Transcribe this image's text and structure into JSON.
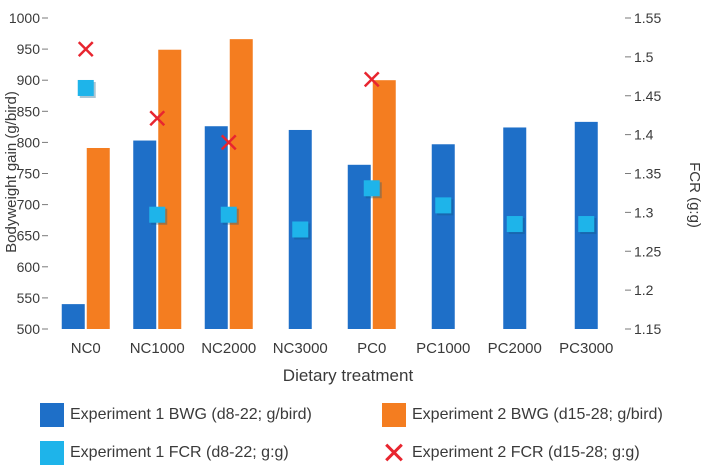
{
  "chart_data": {
    "type": "bar",
    "xlabel": "Dietary treatment",
    "ylabel": "Bodyweight gain (g/bird)",
    "y2label": "FCR (g:g)",
    "categories": [
      "NC0",
      "NC1000",
      "NC2000",
      "NC3000",
      "PC0",
      "PC1000",
      "PC2000",
      "PC3000"
    ],
    "ylim": [
      500,
      1000
    ],
    "yticks": [
      500,
      550,
      600,
      650,
      700,
      750,
      800,
      850,
      900,
      950,
      1000
    ],
    "y2lim": [
      1.15,
      1.55
    ],
    "y2ticks": [
      "1.15",
      "1.2",
      "1.25",
      "1.3",
      "1.35",
      "1.4",
      "1.45",
      "1.5",
      "1.55"
    ],
    "series": [
      {
        "name": "Experiment 1 BWG (d8-22; g/bird)",
        "type": "bar",
        "axis": "left",
        "color": "#1e6fc8",
        "values": [
          540,
          803,
          826,
          820,
          764,
          797,
          824,
          833
        ]
      },
      {
        "name": "Experiment 2 BWG (d15-28; g/bird)",
        "type": "bar",
        "axis": "left",
        "color": "#f47d20",
        "values": [
          791,
          949,
          966,
          null,
          900,
          null,
          null,
          null
        ]
      },
      {
        "name": "Experiment 1 FCR (d8-22; g:g)",
        "type": "scatter",
        "marker": "square",
        "axis": "right",
        "color": "#1eb4ea",
        "values": [
          1.46,
          1.297,
          1.297,
          1.278,
          1.331,
          1.309,
          1.285,
          1.285
        ]
      },
      {
        "name": "Experiment 2 FCR (d15-28; g:g)",
        "type": "scatter",
        "marker": "x",
        "axis": "right",
        "color": "#e8252f",
        "values": [
          1.51,
          1.421,
          1.39,
          null,
          1.471,
          null,
          null,
          null
        ]
      }
    ],
    "grid": false,
    "legend_position": "bottom"
  }
}
